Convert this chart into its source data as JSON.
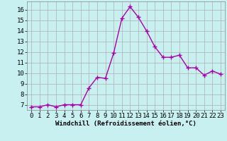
{
  "x": [
    0,
    1,
    2,
    3,
    4,
    5,
    6,
    7,
    8,
    9,
    10,
    11,
    12,
    13,
    14,
    15,
    16,
    17,
    18,
    19,
    20,
    21,
    22,
    23
  ],
  "y": [
    6.8,
    6.8,
    7.0,
    6.8,
    7.0,
    7.0,
    7.0,
    8.6,
    9.6,
    9.5,
    11.9,
    15.2,
    16.3,
    15.3,
    14.0,
    12.5,
    11.5,
    11.5,
    11.7,
    10.5,
    10.5,
    9.8,
    10.2,
    9.9
  ],
  "line_color": "#aa00aa",
  "marker": "+",
  "marker_size": 4,
  "marker_lw": 1.0,
  "line_width": 1.0,
  "bg_color": "#c8f0f0",
  "grid_color": "#b0b0b0",
  "xlabel": "Windchill (Refroidissement éolien,°C)",
  "xlabel_fontsize": 6.5,
  "tick_fontsize": 6.5,
  "ylim": [
    6.5,
    16.8
  ],
  "xlim": [
    -0.5,
    23.5
  ],
  "yticks": [
    7,
    8,
    9,
    10,
    11,
    12,
    13,
    14,
    15,
    16
  ],
  "xticks": [
    0,
    1,
    2,
    3,
    4,
    5,
    6,
    7,
    8,
    9,
    10,
    11,
    12,
    13,
    14,
    15,
    16,
    17,
    18,
    19,
    20,
    21,
    22,
    23
  ]
}
